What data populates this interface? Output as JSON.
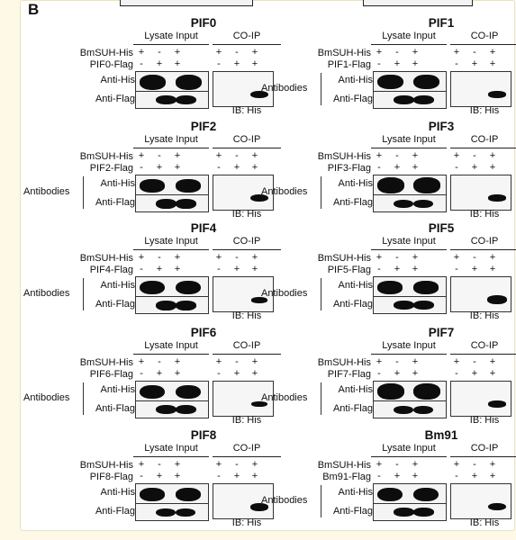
{
  "figure_label": "B",
  "headers": {
    "lysate": "Lysate Input",
    "coip": "CO-IP"
  },
  "row_labels": {
    "bait": "BmSUH-His",
    "anti_his": "Anti-His",
    "anti_flag": "Anti-Flag",
    "antibodies": "Antibodies"
  },
  "ib_label": "IB: His",
  "sign_rows": {
    "bait": [
      "+",
      "-",
      "+",
      "+",
      "-",
      "+"
    ],
    "prey": [
      "-",
      "+",
      "+",
      "-",
      "+",
      "+"
    ]
  },
  "panels": [
    {
      "title": "PIF0",
      "prey_label": "PIF0-Flag",
      "his_band_strength": 0.9,
      "flag_band_strength": 0.8,
      "coip_band_strength": 0.8
    },
    {
      "title": "PIF1",
      "prey_label": "PIF1-Flag",
      "his_band_strength": 0.85,
      "flag_band_strength": 0.75,
      "coip_band_strength": 0.7
    },
    {
      "title": "PIF2",
      "prey_label": "PIF2-Flag",
      "his_band_strength": 0.7,
      "flag_band_strength": 0.85,
      "coip_band_strength": 0.8
    },
    {
      "title": "PIF3",
      "prey_label": "PIF3-Flag",
      "his_band_strength": 0.95,
      "flag_band_strength": 0.7,
      "coip_band_strength": 0.7
    },
    {
      "title": "PIF4",
      "prey_label": "PIF4-Flag",
      "his_band_strength": 0.8,
      "flag_band_strength": 0.85,
      "coip_band_strength": 0.5
    },
    {
      "title": "PIF5",
      "prey_label": "PIF5-Flag",
      "his_band_strength": 0.7,
      "flag_band_strength": 0.75,
      "coip_band_strength": 0.95
    },
    {
      "title": "PIF6",
      "prey_label": "PIF6-Flag",
      "his_band_strength": 0.8,
      "flag_band_strength": 0.8,
      "coip_band_strength": 0.45
    },
    {
      "title": "PIF7",
      "prey_label": "PIF7-Flag",
      "his_band_strength": 0.95,
      "flag_band_strength": 0.7,
      "coip_band_strength": 0.7
    },
    {
      "title": "PIF8",
      "prey_label": "PIF8-Flag",
      "his_band_strength": 0.75,
      "flag_band_strength": 0.7,
      "coip_band_strength": 0.85
    },
    {
      "title": "Bm91",
      "prey_label": "Bm91-Flag",
      "his_band_strength": 0.8,
      "flag_band_strength": 0.75,
      "coip_band_strength": 0.75
    }
  ]
}
